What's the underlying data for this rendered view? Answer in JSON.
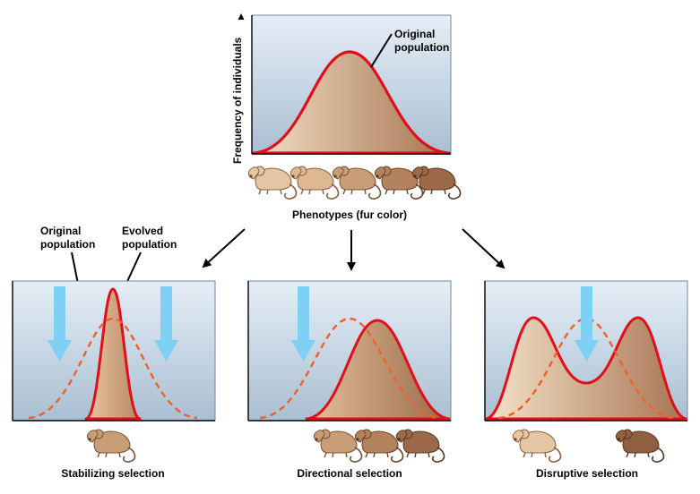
{
  "top": {
    "ylabel": "Frequency of individuals",
    "annotation_line1": "Original",
    "annotation_line2": "population",
    "xlabel": "Phenotypes (fur color)"
  },
  "left_annotations": {
    "original_line1": "Original",
    "original_line2": "population",
    "evolved_line1": "Evolved",
    "evolved_line2": "population"
  },
  "panels": [
    {
      "title": "Stabilizing selection"
    },
    {
      "title": "Directional selection"
    },
    {
      "title": "Disruptive selection"
    }
  ],
  "colors": {
    "curve": "#e0101a",
    "dashed": "#f0602a",
    "arrow": "#7fd0f5",
    "panel_top": "#e6eef7",
    "panel_bottom": "#a9bfd2",
    "fill_light": "#f3dfc4",
    "fill_dark": "#b07d5a"
  },
  "icons": [
    "mouse-icon"
  ]
}
